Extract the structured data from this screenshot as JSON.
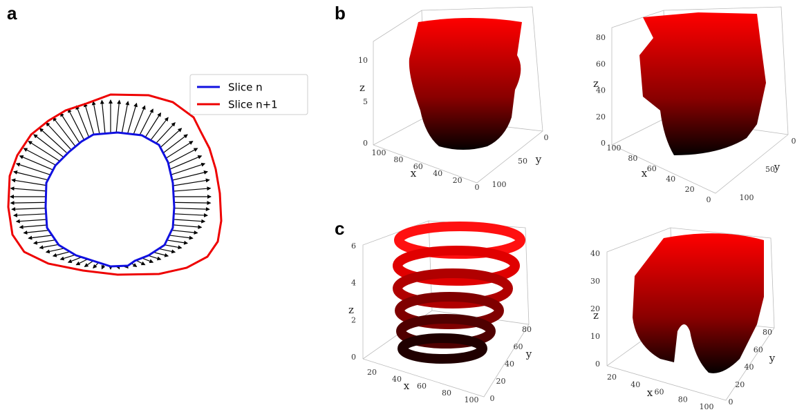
{
  "panels": {
    "a": {
      "label": "a",
      "legend": [
        "Slice n",
        "Slice n+1"
      ]
    },
    "b": {
      "label": "b",
      "plots": [
        {
          "x_label": "x",
          "y_label": "y",
          "z_label": "z",
          "x_ticks": [
            100,
            80,
            60,
            40,
            20,
            0
          ],
          "y_ticks": [
            0,
            50,
            100
          ],
          "z_ticks": [
            0,
            5,
            10
          ]
        },
        {
          "x_label": "x",
          "y_label": "y",
          "z_label": "z",
          "x_ticks": [
            100,
            80,
            60,
            40,
            20,
            0
          ],
          "y_ticks": [
            0,
            50,
            100
          ],
          "z_ticks": [
            0,
            20,
            40,
            60,
            80
          ]
        }
      ]
    },
    "c": {
      "label": "c",
      "plots": [
        {
          "x_label": "x",
          "y_label": "y",
          "z_label": "z",
          "x_ticks": [
            20,
            40,
            60,
            80,
            100
          ],
          "y_ticks": [
            0,
            20,
            40,
            60,
            80
          ],
          "z_ticks": [
            0,
            2,
            4,
            6
          ]
        },
        {
          "x_label": "x",
          "y_label": "y",
          "z_label": "z",
          "x_ticks": [
            20,
            40,
            60,
            80,
            100
          ],
          "y_ticks": [
            0,
            20,
            40,
            60,
            80
          ],
          "z_ticks": [
            0,
            10,
            20,
            30,
            40
          ]
        }
      ]
    }
  }
}
